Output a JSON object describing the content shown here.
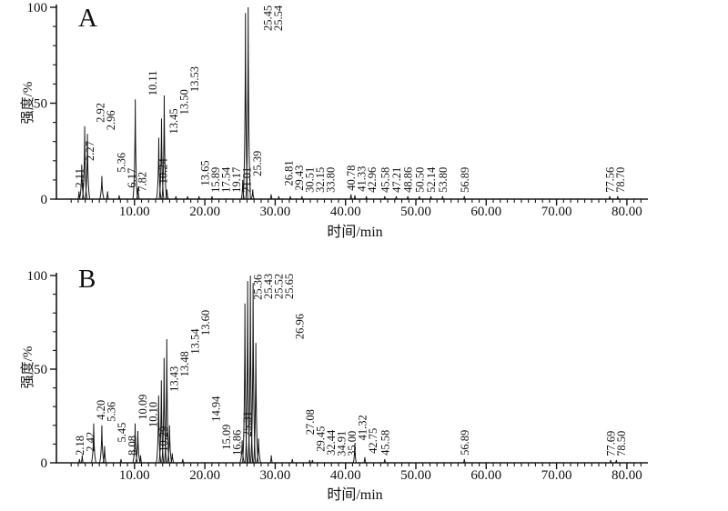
{
  "figure": {
    "description": "Two stacked total-ion chromatograms, panels A and B"
  },
  "chart_data": [
    {
      "type": "line",
      "panel_label": "A",
      "xlabel": "时间/min",
      "ylabel": "强度/%",
      "xlim": [
        0,
        83
      ],
      "ylim": [
        0,
        100
      ],
      "grid": false,
      "x_tick_values": [
        10,
        20,
        30,
        40,
        50,
        60,
        70,
        80
      ],
      "x_tick_labels": [
        "10.00",
        "20.00",
        "30.00",
        "40.00",
        "50.00",
        "60.00",
        "70.00",
        "80.00"
      ],
      "y_tick_values": [
        0,
        50,
        100
      ],
      "y_tick_labels": [
        "0",
        "50",
        "100"
      ],
      "peaks": [
        {
          "label": "2.11",
          "t": 2.11,
          "h": 4
        },
        {
          "label": "2.27",
          "t": 2.27,
          "h": 18
        },
        {
          "label": "2.92",
          "t": 2.92,
          "h": 38
        },
        {
          "label": "2.96",
          "t": 2.96,
          "h": 34
        },
        {
          "label": "5.36",
          "t": 5.36,
          "h": 12
        },
        {
          "label": "6.17",
          "t": 6.17,
          "h": 4
        },
        {
          "label": "7.82",
          "t": 7.82,
          "h": 2
        },
        {
          "label": "10.11",
          "t": 10.11,
          "h": 52
        },
        {
          "label": "10.24",
          "t": 10.24,
          "h": 6
        },
        {
          "label": "13.45",
          "t": 13.45,
          "h": 32
        },
        {
          "label": "13.50",
          "t": 13.5,
          "h": 42
        },
        {
          "label": "13.53",
          "t": 13.53,
          "h": 54
        },
        {
          "label": "13.65",
          "t": 13.65,
          "h": 5
        },
        {
          "label": "15.89",
          "t": 15.89,
          "h": 1.5
        },
        {
          "label": "17.54",
          "t": 17.54,
          "h": 1.5
        },
        {
          "label": "19.17",
          "t": 19.17,
          "h": 1.5
        },
        {
          "label": "21.01",
          "t": 21.01,
          "h": 1.5
        },
        {
          "label": "25.39",
          "t": 25.39,
          "h": 10
        },
        {
          "label": "25.45",
          "t": 25.45,
          "h": 97
        },
        {
          "label": "25.54",
          "t": 25.54,
          "h": 100
        },
        {
          "label": "26.81",
          "t": 26.81,
          "h": 5
        },
        {
          "label": "29.43",
          "t": 29.43,
          "h": 2.5
        },
        {
          "label": "30.51",
          "t": 30.51,
          "h": 1.5
        },
        {
          "label": "32.15",
          "t": 32.15,
          "h": 1.5
        },
        {
          "label": "33.80",
          "t": 33.8,
          "h": 1.5
        },
        {
          "label": "40.78",
          "t": 40.78,
          "h": 2.5
        },
        {
          "label": "41.33",
          "t": 41.33,
          "h": 2
        },
        {
          "label": "42.96",
          "t": 42.96,
          "h": 1.5
        },
        {
          "label": "45.58",
          "t": 45.58,
          "h": 1.5
        },
        {
          "label": "47.21",
          "t": 47.21,
          "h": 1.5
        },
        {
          "label": "48.86",
          "t": 48.86,
          "h": 1.5
        },
        {
          "label": "50.50",
          "t": 50.5,
          "h": 1.5
        },
        {
          "label": "52.14",
          "t": 52.14,
          "h": 1.5
        },
        {
          "label": "53.80",
          "t": 53.8,
          "h": 1.5
        },
        {
          "label": "56.89",
          "t": 56.89,
          "h": 1.5
        },
        {
          "label": "77.56",
          "t": 77.56,
          "h": 1.5
        },
        {
          "label": "78.70",
          "t": 78.7,
          "h": 1.5
        }
      ]
    },
    {
      "type": "line",
      "panel_label": "B",
      "xlabel": "时间/min",
      "ylabel": "强度/%",
      "xlim": [
        0,
        83
      ],
      "ylim": [
        0,
        100
      ],
      "grid": false,
      "x_tick_values": [
        10,
        20,
        30,
        40,
        50,
        60,
        70,
        80
      ],
      "x_tick_labels": [
        "10.00",
        "20.00",
        "30.00",
        "40.00",
        "50.00",
        "60.00",
        "70.00",
        "80.00"
      ],
      "y_tick_values": [
        0,
        50,
        100
      ],
      "y_tick_labels": [
        "0",
        "50",
        "100"
      ],
      "peaks": [
        {
          "label": "2.18",
          "t": 2.18,
          "h": 2
        },
        {
          "label": "2.42",
          "t": 2.42,
          "h": 4
        },
        {
          "label": "4.20",
          "t": 4.2,
          "h": 21
        },
        {
          "label": "5.36",
          "t": 5.36,
          "h": 20
        },
        {
          "label": "5.45",
          "t": 5.45,
          "h": 9
        },
        {
          "label": "8.08",
          "t": 8.08,
          "h": 2
        },
        {
          "label": "10.09",
          "t": 10.09,
          "h": 21
        },
        {
          "label": "10.10",
          "t": 10.1,
          "h": 17
        },
        {
          "label": "10.29",
          "t": 10.29,
          "h": 4
        },
        {
          "label": "13.43",
          "t": 13.43,
          "h": 36
        },
        {
          "label": "13.48",
          "t": 13.48,
          "h": 44
        },
        {
          "label": "13.54",
          "t": 13.54,
          "h": 56
        },
        {
          "label": "13.60",
          "t": 13.6,
          "h": 66
        },
        {
          "label": "14.94",
          "t": 14.94,
          "h": 20
        },
        {
          "label": "15.09",
          "t": 15.09,
          "h": 5
        },
        {
          "label": "16.86",
          "t": 16.86,
          "h": 2
        },
        {
          "label": "25.31",
          "t": 25.31,
          "h": 12
        },
        {
          "label": "25.36",
          "t": 25.36,
          "h": 85
        },
        {
          "label": "25.43",
          "t": 25.43,
          "h": 97
        },
        {
          "label": "25.52",
          "t": 25.52,
          "h": 100
        },
        {
          "label": "25.65",
          "t": 25.65,
          "h": 96
        },
        {
          "label": "26.96",
          "t": 26.96,
          "h": 64
        },
        {
          "label": "27.08",
          "t": 27.08,
          "h": 13
        },
        {
          "label": "29.45",
          "t": 29.45,
          "h": 4
        },
        {
          "label": "32.44",
          "t": 32.44,
          "h": 2
        },
        {
          "label": "34.91",
          "t": 34.91,
          "h": 1.5
        },
        {
          "label": "35.00",
          "t": 35.0,
          "h": 1.5
        },
        {
          "label": "41.32",
          "t": 41.32,
          "h": 10
        },
        {
          "label": "42.75",
          "t": 42.75,
          "h": 3
        },
        {
          "label": "45.58",
          "t": 45.58,
          "h": 2
        },
        {
          "label": "56.89",
          "t": 56.89,
          "h": 2
        },
        {
          "label": "77.69",
          "t": 77.69,
          "h": 1.5
        },
        {
          "label": "78.50",
          "t": 78.5,
          "h": 1.5
        }
      ]
    }
  ]
}
